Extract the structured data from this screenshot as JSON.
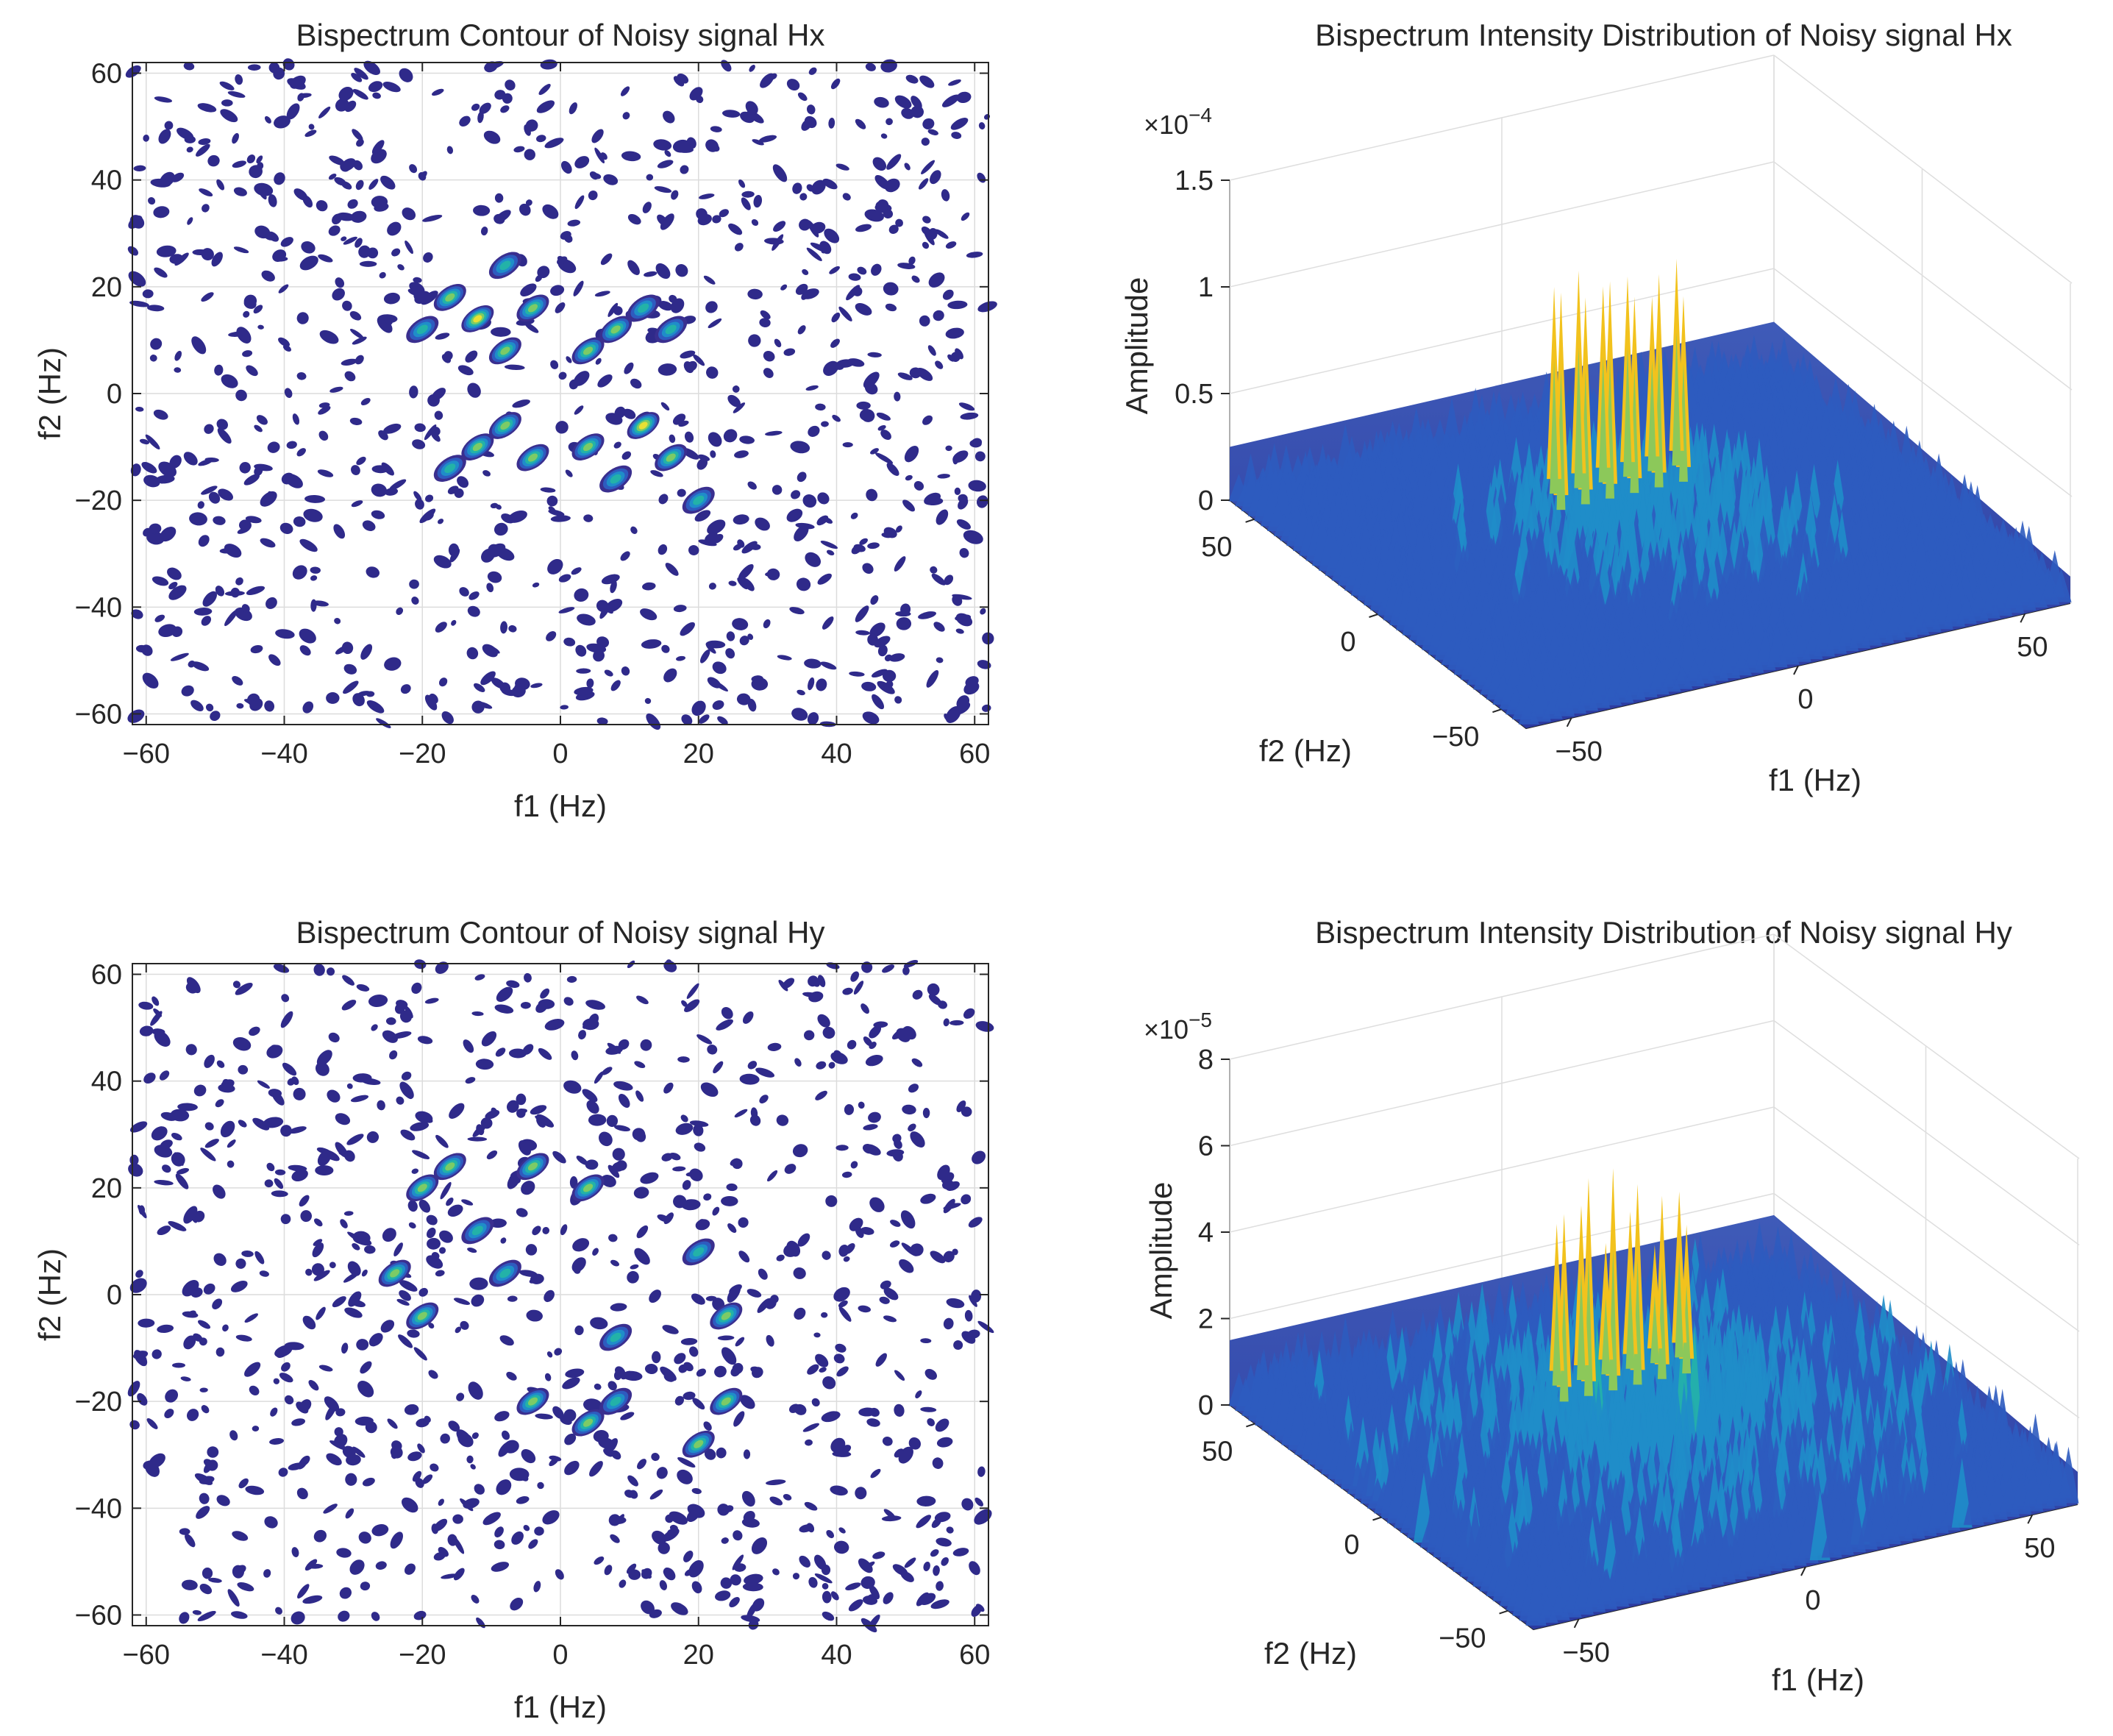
{
  "chart_data": [
    {
      "id": "contour-hx",
      "type": "heatmap",
      "subtype": "contour",
      "title": "Bispectrum Contour of Noisy signal Hx",
      "xlabel": "f1 (Hz)",
      "ylabel": "f2 (Hz)",
      "xlim": [
        -62,
        62
      ],
      "ylim": [
        -62,
        62
      ],
      "xticks": [
        -60,
        -40,
        -20,
        0,
        20,
        40,
        60
      ],
      "yticks": [
        -60,
        -40,
        -20,
        0,
        20,
        40,
        60
      ],
      "xtick_labels": [
        "−60",
        "−40",
        "−20",
        "0",
        "20",
        "40",
        "60"
      ],
      "ytick_labels": [
        "−60",
        "−40",
        "−20",
        "0",
        "20",
        "40",
        "60"
      ],
      "grid": true,
      "peaks": [
        {
          "f1": -12,
          "f2": 14,
          "level": 0.95
        },
        {
          "f1": -8,
          "f2": 8,
          "level": 0.9
        },
        {
          "f1": -4,
          "f2": 16,
          "level": 0.85
        },
        {
          "f1": -20,
          "f2": 12,
          "level": 0.7
        },
        {
          "f1": -16,
          "f2": 18,
          "level": 0.75
        },
        {
          "f1": -8,
          "f2": 24,
          "level": 0.6
        },
        {
          "f1": 4,
          "f2": 8,
          "level": 0.9
        },
        {
          "f1": 8,
          "f2": 12,
          "level": 0.8
        },
        {
          "f1": 12,
          "f2": 16,
          "level": 0.7
        },
        {
          "f1": 16,
          "f2": 12,
          "level": 0.6
        },
        {
          "f1": 4,
          "f2": -10,
          "level": 0.9
        },
        {
          "f1": 12,
          "f2": -6,
          "level": 0.95
        },
        {
          "f1": 16,
          "f2": -12,
          "level": 0.8
        },
        {
          "f1": 8,
          "f2": -16,
          "level": 0.7
        },
        {
          "f1": 20,
          "f2": -20,
          "level": 0.6
        },
        {
          "f1": -8,
          "f2": -6,
          "level": 0.9
        },
        {
          "f1": -12,
          "f2": -10,
          "level": 0.8
        },
        {
          "f1": -16,
          "f2": -14,
          "level": 0.7
        },
        {
          "f1": -4,
          "f2": -12,
          "level": 0.75
        }
      ]
    },
    {
      "id": "surface-hx",
      "type": "area",
      "subtype": "surface3d",
      "title": "Bispectrum Intensity Distribution of Noisy signal Hx",
      "xlabel": "f1 (Hz)",
      "ylabel": "f2 (Hz)",
      "zlabel": "Amplitude",
      "exponent_label": "×10",
      "exponent_power": "−4",
      "zlim": [
        0,
        1.5
      ],
      "zticks": [
        0,
        0.5,
        1,
        1.5
      ],
      "ztick_labels": [
        "0",
        "0.5",
        "1",
        "1.5"
      ],
      "xticks": [
        -50,
        0,
        50
      ],
      "xtick_labels": [
        "−50",
        "0",
        "50"
      ],
      "yticks": [
        -50,
        0,
        50
      ],
      "ytick_labels": [
        "−50",
        "0",
        "50"
      ],
      "noise_floor": 0.25,
      "peak_values": [
        1.2,
        1.15,
        1.2,
        1.1,
        1.18,
        1.05,
        1.15,
        1.2,
        1.1,
        1.12,
        1.0,
        1.15
      ]
    },
    {
      "id": "contour-hy",
      "type": "heatmap",
      "subtype": "contour",
      "title": "Bispectrum Contour of Noisy signal Hy",
      "xlabel": "f1 (Hz)",
      "ylabel": "f2 (Hz)",
      "xlim": [
        -62,
        62
      ],
      "ylim": [
        -62,
        62
      ],
      "xticks": [
        -60,
        -40,
        -20,
        0,
        20,
        40,
        60
      ],
      "yticks": [
        -60,
        -40,
        -20,
        0,
        20,
        40,
        60
      ],
      "xtick_labels": [
        "−60",
        "−40",
        "−20",
        "0",
        "20",
        "40",
        "60"
      ],
      "ytick_labels": [
        "−60",
        "−40",
        "−20",
        "0",
        "20",
        "40",
        "60"
      ],
      "grid": true,
      "peaks": [
        {
          "f1": -24,
          "f2": 4,
          "level": 0.9
        },
        {
          "f1": -20,
          "f2": 20,
          "level": 0.85
        },
        {
          "f1": -16,
          "f2": 24,
          "level": 0.8
        },
        {
          "f1": -4,
          "f2": 24,
          "level": 0.8
        },
        {
          "f1": -8,
          "f2": 4,
          "level": 0.7
        },
        {
          "f1": 4,
          "f2": 20,
          "level": 0.85
        },
        {
          "f1": 20,
          "f2": 8,
          "level": 0.7
        },
        {
          "f1": 24,
          "f2": -4,
          "level": 0.9
        },
        {
          "f1": 24,
          "f2": -20,
          "level": 0.85
        },
        {
          "f1": 20,
          "f2": -28,
          "level": 0.8
        },
        {
          "f1": 8,
          "f2": -20,
          "level": 0.7
        },
        {
          "f1": 4,
          "f2": -24,
          "level": 0.8
        },
        {
          "f1": -20,
          "f2": -4,
          "level": 0.75
        },
        {
          "f1": -4,
          "f2": -20,
          "level": 0.8
        },
        {
          "f1": 8,
          "f2": -8,
          "level": 0.7
        },
        {
          "f1": -12,
          "f2": 12,
          "level": 0.65
        }
      ]
    },
    {
      "id": "surface-hy",
      "type": "area",
      "subtype": "surface3d",
      "title": "Bispectrum Intensity Distribution of Noisy signal Hy",
      "xlabel": "f1 (Hz)",
      "ylabel": "f2 (Hz)",
      "zlabel": "Amplitude",
      "exponent_label": "×10",
      "exponent_power": "−5",
      "zlim": [
        0,
        8
      ],
      "zticks": [
        0,
        2,
        4,
        6,
        8
      ],
      "ztick_labels": [
        "0",
        "2",
        "4",
        "6",
        "8"
      ],
      "xticks": [
        -50,
        0,
        50
      ],
      "xtick_labels": [
        "−50",
        "0",
        "50"
      ],
      "yticks": [
        -50,
        0,
        50
      ],
      "ytick_labels": [
        "−50",
        "0",
        "50"
      ],
      "noise_floor": 1.5,
      "peak_values": [
        5.5,
        6.2,
        6.3,
        5.8,
        5.4,
        4.6,
        4.9,
        5.2,
        4.2,
        4.8,
        3.9,
        5.0
      ]
    }
  ]
}
